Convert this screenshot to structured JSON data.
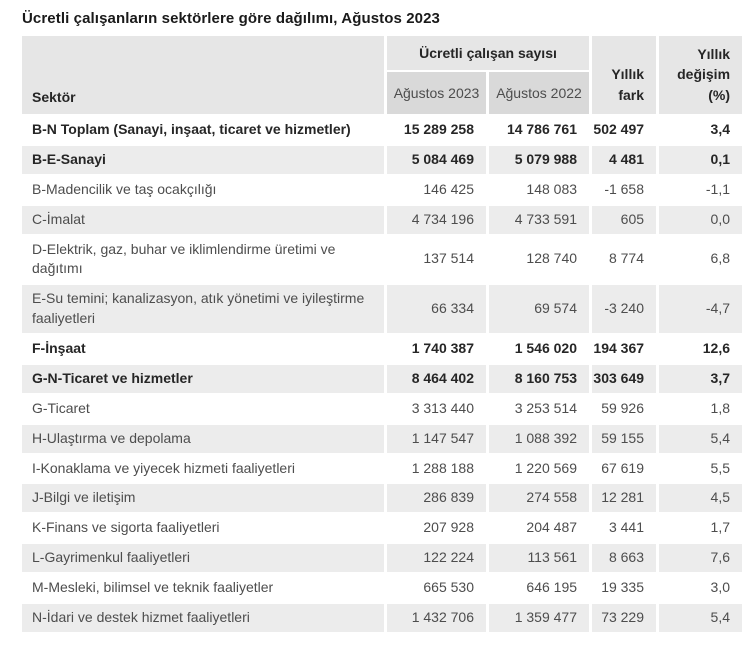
{
  "title": "Ücretli çalışanların sektörlere göre dağılımı, Ağustos 2023",
  "table": {
    "header": {
      "sector": "Sektör",
      "group": "Ücretli çalışan sayısı",
      "col_2023": "Ağustos 2023",
      "col_2022": "Ağustos 2022",
      "col_diff": "Yıllık fark",
      "col_change": "Yıllık değişim (%)"
    },
    "rows": [
      {
        "sector": "B-N Toplam (Sanayi, inşaat, ticaret ve hizmetler)",
        "aug_2023": "15 289 258",
        "aug_2022": "14 786 761",
        "yearly_diff": "502 497",
        "yearly_change": "3,4",
        "bold": true
      },
      {
        "sector": "B-E-Sanayi",
        "aug_2023": "5 084 469",
        "aug_2022": "5 079 988",
        "yearly_diff": "4 481",
        "yearly_change": "0,1",
        "bold": true
      },
      {
        "sector": "B-Madencilik ve taş ocakçılığı",
        "aug_2023": "146 425",
        "aug_2022": "148 083",
        "yearly_diff": "-1 658",
        "yearly_change": "-1,1",
        "bold": false
      },
      {
        "sector": "C-İmalat",
        "aug_2023": "4 734 196",
        "aug_2022": "4 733 591",
        "yearly_diff": "605",
        "yearly_change": "0,0",
        "bold": false
      },
      {
        "sector": "D-Elektrik, gaz, buhar ve iklimlendirme üretimi ve dağıtımı",
        "aug_2023": "137 514",
        "aug_2022": "128 740",
        "yearly_diff": "8 774",
        "yearly_change": "6,8",
        "bold": false
      },
      {
        "sector": "E-Su temini; kanalizasyon, atık yönetimi ve iyileştirme faaliyetleri",
        "aug_2023": "66 334",
        "aug_2022": "69 574",
        "yearly_diff": "-3 240",
        "yearly_change": "-4,7",
        "bold": false
      },
      {
        "sector": "F-İnşaat",
        "aug_2023": "1 740 387",
        "aug_2022": "1 546 020",
        "yearly_diff": "194 367",
        "yearly_change": "12,6",
        "bold": true
      },
      {
        "sector": "G-N-Ticaret ve hizmetler",
        "aug_2023": "8 464 402",
        "aug_2022": "8 160 753",
        "yearly_diff": "303 649",
        "yearly_change": "3,7",
        "bold": true
      },
      {
        "sector": "G-Ticaret",
        "aug_2023": "3 313 440",
        "aug_2022": "3 253 514",
        "yearly_diff": "59 926",
        "yearly_change": "1,8",
        "bold": false
      },
      {
        "sector": "H-Ulaştırma ve depolama",
        "aug_2023": "1 147 547",
        "aug_2022": "1 088 392",
        "yearly_diff": "59 155",
        "yearly_change": "5,4",
        "bold": false
      },
      {
        "sector": "I-Konaklama ve yiyecek hizmeti faaliyetleri",
        "aug_2023": "1 288 188",
        "aug_2022": "1 220 569",
        "yearly_diff": "67 619",
        "yearly_change": "5,5",
        "bold": false
      },
      {
        "sector": "J-Bilgi ve iletişim",
        "aug_2023": "286 839",
        "aug_2022": "274 558",
        "yearly_diff": "12 281",
        "yearly_change": "4,5",
        "bold": false
      },
      {
        "sector": "K-Finans ve sigorta faaliyetleri",
        "aug_2023": "207 928",
        "aug_2022": "204 487",
        "yearly_diff": "3 441",
        "yearly_change": "1,7",
        "bold": false
      },
      {
        "sector": "L-Gayrimenkul faaliyetleri",
        "aug_2023": "122 224",
        "aug_2022": "113 561",
        "yearly_diff": "8 663",
        "yearly_change": "7,6",
        "bold": false
      },
      {
        "sector": "M-Mesleki, bilimsel ve teknik faaliyetler",
        "aug_2023": "665 530",
        "aug_2022": "646 195",
        "yearly_diff": "19 335",
        "yearly_change": "3,0",
        "bold": false
      },
      {
        "sector": "N-İdari ve destek hizmet faaliyetleri",
        "aug_2023": "1 432 706",
        "aug_2022": "1 359 477",
        "yearly_diff": "73 229",
        "yearly_change": "5,4",
        "bold": false
      }
    ]
  },
  "colors": {
    "header_bg": "#e6e6e6",
    "date_header_bg": "#d9d9d9",
    "stripe_bg": "#ececec",
    "text_normal": "#4d4d4d",
    "text_bold": "#262626"
  }
}
